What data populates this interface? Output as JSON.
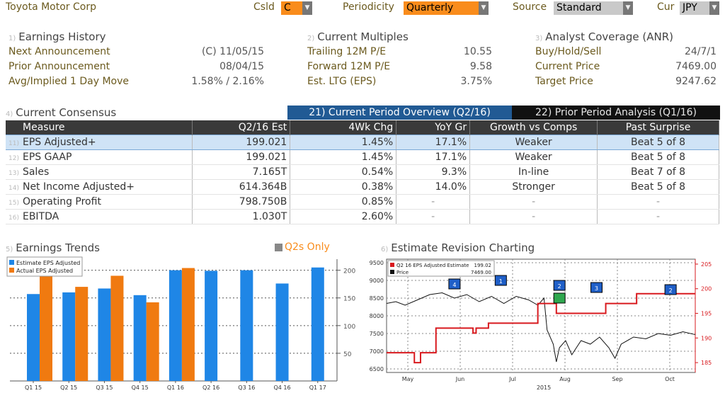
{
  "header": {
    "company": "Toyota Motor Corp",
    "csld_label": "Csld",
    "csld_value": "C",
    "periodicity_label": "Periodicity",
    "periodicity_value": "Quarterly",
    "source_label": "Source",
    "source_value": "Standard",
    "cur_label": "Cur",
    "cur_value": "JPY"
  },
  "earnings_history": {
    "num": "1)",
    "title": "Earnings History",
    "rows": [
      {
        "label": "Next Announcement",
        "value": "(C)  11/05/15"
      },
      {
        "label": "Prior Announcement",
        "value": "08/04/15"
      },
      {
        "label": "Avg/Implied 1 Day Move",
        "value": "1.58% / 2.16%"
      }
    ]
  },
  "current_multiples": {
    "num": "2)",
    "title": "Current Multiples",
    "rows": [
      {
        "label": "Trailing 12M P/E",
        "value": "10.55"
      },
      {
        "label": "Forward 12M P/E",
        "value": "9.58"
      },
      {
        "label": "Est. LTG (EPS)",
        "value": "3.75%"
      }
    ]
  },
  "analyst_coverage": {
    "num": "3)",
    "title": "Analyst Coverage (ANR)",
    "rows": [
      {
        "label": "Buy/Hold/Sell",
        "value": "24/7/1"
      },
      {
        "label": "Current Price",
        "value": "7469.00"
      },
      {
        "label": "Target Price",
        "value": "9247.62"
      }
    ]
  },
  "consensus": {
    "num": "4)",
    "title": "Current Consensus",
    "tab_current": "21) Current Period Overview (Q2/16)",
    "tab_prior": "22) Prior Period Analysis (Q1/16)",
    "columns": [
      "Measure",
      "Q2/16 Est",
      "4Wk Chg",
      "YoY Gr",
      "Growth vs Comps",
      "Past Surprise"
    ],
    "rows": [
      {
        "num": "11)",
        "measure": "EPS Adjusted+",
        "est": "199.021",
        "chg": "1.45%",
        "yoy": "17.1%",
        "comps": "Weaker",
        "surprise": "Beat 5 of 8"
      },
      {
        "num": "12)",
        "measure": "EPS GAAP",
        "est": "199.021",
        "chg": "1.45%",
        "yoy": "17.1%",
        "comps": "Weaker",
        "surprise": "Beat 5 of 8"
      },
      {
        "num": "13)",
        "measure": "Sales",
        "est": "7.165T",
        "chg": "0.54%",
        "yoy": "9.3%",
        "comps": "In-line",
        "surprise": "Beat 7 of 8"
      },
      {
        "num": "14)",
        "measure": "Net Income Adjusted+",
        "est": "614.364B",
        "chg": "0.38%",
        "yoy": "14.0%",
        "comps": "Stronger",
        "surprise": "Beat 5 of 8"
      },
      {
        "num": "15)",
        "measure": "Operating Profit",
        "est": "798.750B",
        "chg": "0.85%",
        "yoy": "-",
        "comps": "-",
        "surprise": "-"
      },
      {
        "num": "16)",
        "measure": "EBITDA",
        "est": "1.030T",
        "chg": "2.60%",
        "yoy": "-",
        "comps": "-",
        "surprise": "-"
      }
    ]
  },
  "trends": {
    "num": "5)",
    "title": "Earnings Trends",
    "q2s_only": "Q2s Only"
  },
  "revision": {
    "num": "6)",
    "title": "Estimate Revision Charting"
  },
  "colors": {
    "estimate_bar": "#1f86e6",
    "actual_bar": "#f07a10",
    "estimate_line": "#d8191e",
    "price_line": "#111111",
    "tab_active": "#215a94",
    "field_orange": "#f98c1c"
  },
  "chart_data": [
    {
      "type": "bar",
      "categories": [
        "Q1 15",
        "Q2 15",
        "Q3 15",
        "Q4 15",
        "Q1 16",
        "Q2 16",
        "Q3 16",
        "Q4 16",
        "Q1 17"
      ],
      "series": [
        {
          "name": "Estimate EPS Adjusted",
          "values": [
            157,
            160,
            167,
            155,
            200,
            199,
            200,
            176,
            205
          ]
        },
        {
          "name": "Actual EPS Adjusted",
          "values": [
            190,
            170,
            190,
            142,
            204,
            null,
            null,
            null,
            null
          ]
        }
      ],
      "yticks": [
        50,
        100,
        150,
        200
      ],
      "ylim": [
        0,
        220
      ]
    },
    {
      "type": "line",
      "title": "Q2 16 EPS Adjusted Estimate",
      "xlabel": "2015",
      "months": [
        "May",
        "Jun",
        "Jul",
        "Aug",
        "Sep",
        "Oct"
      ],
      "series": [
        {
          "name": "Q2 16 EPS Adjusted Estimate",
          "last": "199.02",
          "axis": "right",
          "points": [
            [
              0,
              187
            ],
            [
              8,
              187
            ],
            [
              9,
              185
            ],
            [
              10,
              185
            ],
            [
              11,
              187
            ],
            [
              14,
              187
            ],
            [
              15,
              187
            ],
            [
              16,
              192
            ],
            [
              27,
              192
            ],
            [
              28,
              191
            ],
            [
              29,
              192
            ],
            [
              32,
              192
            ],
            [
              33,
              193
            ],
            [
              48,
              193
            ],
            [
              49,
              197
            ],
            [
              54,
              197
            ],
            [
              55,
              195
            ],
            [
              70,
              195
            ],
            [
              71,
              197
            ],
            [
              80,
              197
            ],
            [
              81,
              199
            ],
            [
              100,
              199
            ]
          ]
        },
        {
          "name": "Price",
          "last": "7469.00",
          "axis": "left",
          "points": [
            [
              0,
              8350
            ],
            [
              3,
              8400
            ],
            [
              6,
              8300
            ],
            [
              10,
              8450
            ],
            [
              14,
              8600
            ],
            [
              18,
              8650
            ],
            [
              22,
              8500
            ],
            [
              26,
              8600
            ],
            [
              30,
              8400
            ],
            [
              34,
              8550
            ],
            [
              38,
              8350
            ],
            [
              42,
              8550
            ],
            [
              46,
              8450
            ],
            [
              49,
              8300
            ],
            [
              51,
              8500
            ],
            [
              52,
              7600
            ],
            [
              54,
              7200
            ],
            [
              55,
              6700
            ],
            [
              56,
              7100
            ],
            [
              58,
              7300
            ],
            [
              60,
              6900
            ],
            [
              63,
              7300
            ],
            [
              66,
              7200
            ],
            [
              69,
              7400
            ],
            [
              72,
              7100
            ],
            [
              74,
              6800
            ],
            [
              76,
              7200
            ],
            [
              80,
              7400
            ],
            [
              84,
              7350
            ],
            [
              88,
              7500
            ],
            [
              92,
              7450
            ],
            [
              96,
              7550
            ],
            [
              100,
              7469
            ]
          ]
        }
      ],
      "left_ticks": [
        6500,
        7000,
        7500,
        8000,
        8500,
        9000,
        9500
      ],
      "right_ticks": [
        185,
        190,
        195,
        200,
        205
      ],
      "markers": [
        {
          "label": "4",
          "color": "#1f5fc8"
        },
        {
          "label": "1",
          "color": "#1f5fc8"
        },
        {
          "label": "2",
          "color": "#1f5fc8"
        },
        {
          "label": "3",
          "color": "#1f5fc8"
        },
        {
          "label": "2",
          "color": "#1f5fc8"
        }
      ]
    }
  ]
}
